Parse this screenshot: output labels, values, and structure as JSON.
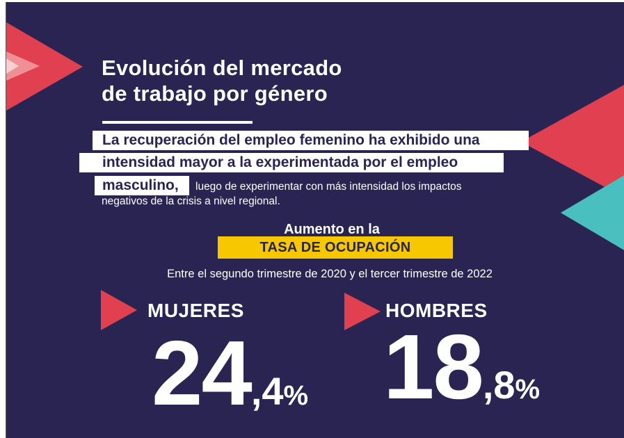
{
  "title": {
    "line1": "Evolución del mercado",
    "line2": "de trabajo por género"
  },
  "highlight": {
    "line1": "La recuperación del empleo femenino ha exhibido una",
    "line2": "intensidad mayor a la experimentada por el empleo",
    "line3": "masculino,"
  },
  "body": {
    "line1": "luego de experimentar con más intensidad los impactos",
    "line2": "negativos de la crisis a nivel regional."
  },
  "indicator": {
    "heading": "Aumento en la",
    "name": "TASA DE OCUPACIÓN",
    "period": "Entre el segundo trimestre de 2020 y el tercer trimestre de 2022"
  },
  "women": {
    "label": "MUJERES",
    "integer": "24",
    "decimal": ",4",
    "unit": "%"
  },
  "men": {
    "label": "HOMBRES",
    "integer": "18",
    "decimal": ",8",
    "unit": "%"
  },
  "colors": {
    "background": "#292452",
    "accent_red": "#e0404f",
    "accent_teal": "#49bfbf",
    "accent_pink": "#f08f95",
    "highlight_yellow": "#f7c800",
    "text": "#ffffff"
  }
}
